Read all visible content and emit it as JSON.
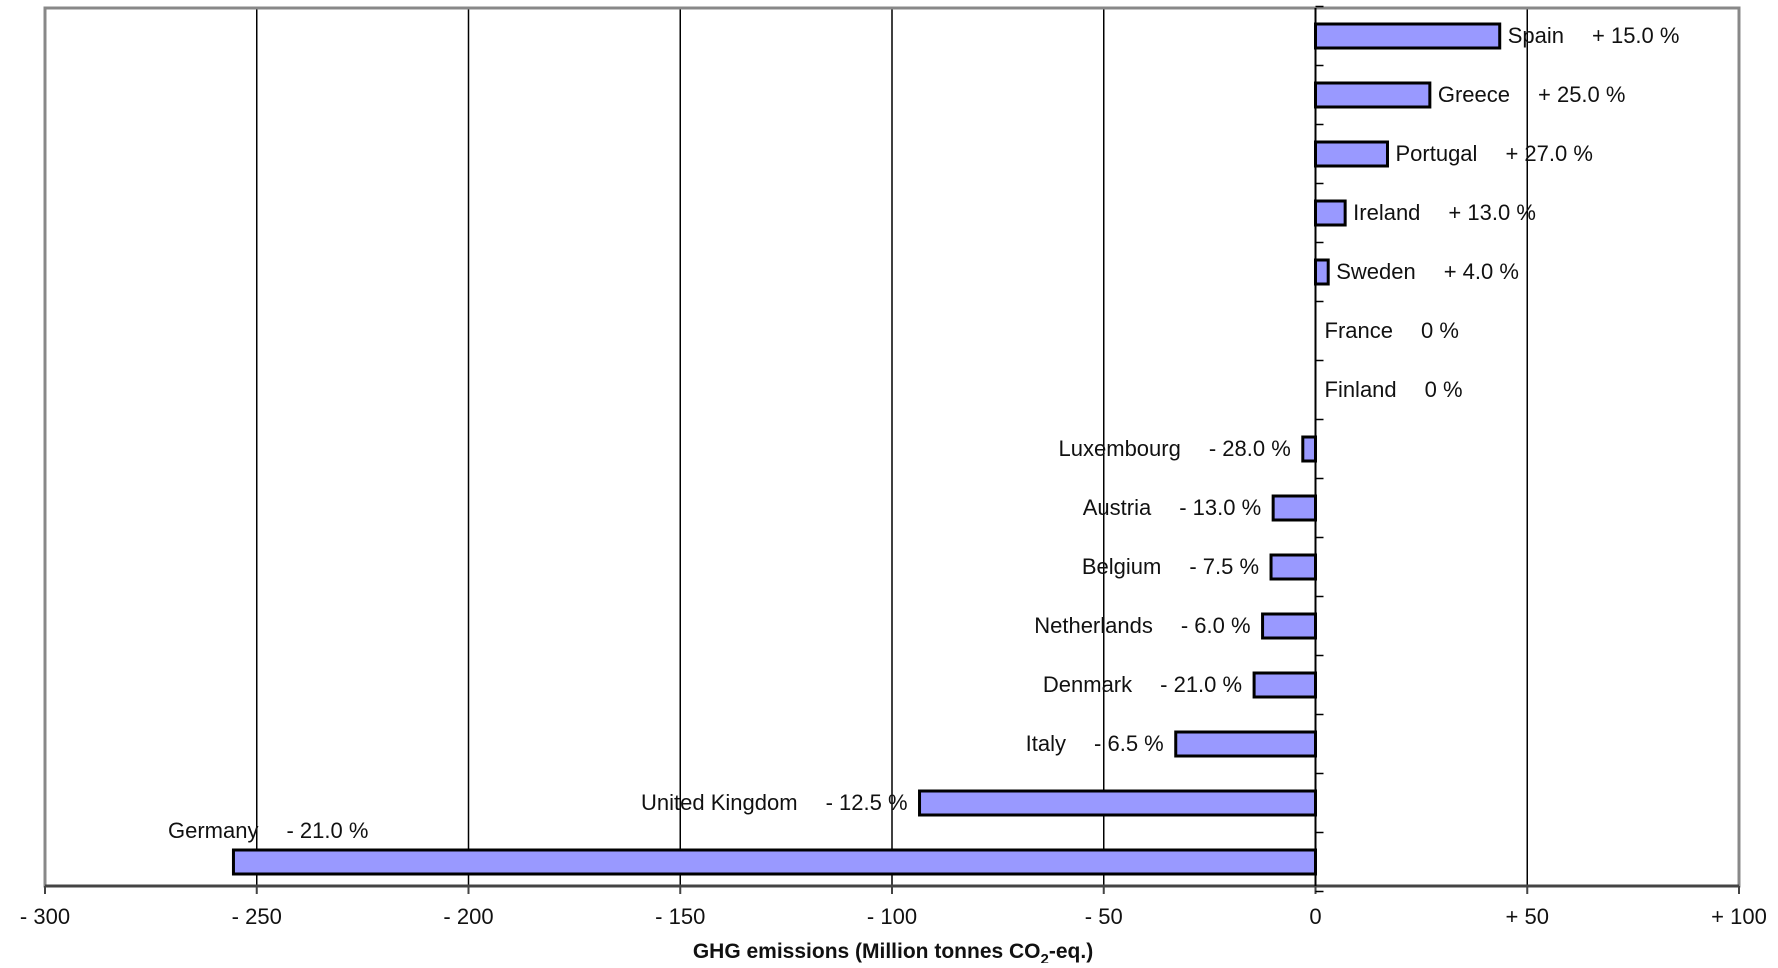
{
  "chart_data": {
    "type": "bar",
    "orientation": "horizontal",
    "xlabel_main": "GHG emissions (Million tonnes CO",
    "xlabel_sub": "2",
    "xlabel_end": "-eq.)",
    "xlim": [
      -300,
      100
    ],
    "x_ticks": [
      -300,
      -250,
      -200,
      -150,
      -100,
      -50,
      0,
      50,
      100
    ],
    "x_tick_labels": [
      "- 300",
      "- 250",
      "- 200",
      "- 150",
      "- 100",
      "- 50",
      "0",
      "+ 50",
      "+ 100"
    ],
    "gridlines": "vertical",
    "categories": [
      "Spain",
      "Greece",
      "Portugal",
      "Ireland",
      "Sweden",
      "France",
      "Finland",
      "Luxembourg",
      "Austria",
      "Belgium",
      "Netherlands",
      "Denmark",
      "Italy",
      "United Kingdom",
      "Germany"
    ],
    "values": [
      43.5,
      27,
      17,
      7,
      3,
      0,
      0,
      -3,
      -10,
      -10.5,
      -12.5,
      -14.5,
      -33,
      -93.5,
      -255.5
    ],
    "targets": [
      "+ 15.0 %",
      "+ 25.0 %",
      "+ 27.0 %",
      "+ 13.0 %",
      "+ 4.0 %",
      "0 %",
      "0 %",
      "- 28.0 %",
      "- 13.0 %",
      "- 7.5 %",
      "- 6.0 %",
      "- 21.0 %",
      "- 6.5 %",
      "- 12.5 %",
      "- 21.0 %"
    ],
    "bar_color": "#9999ff",
    "bar_edge_color": "#000000"
  }
}
